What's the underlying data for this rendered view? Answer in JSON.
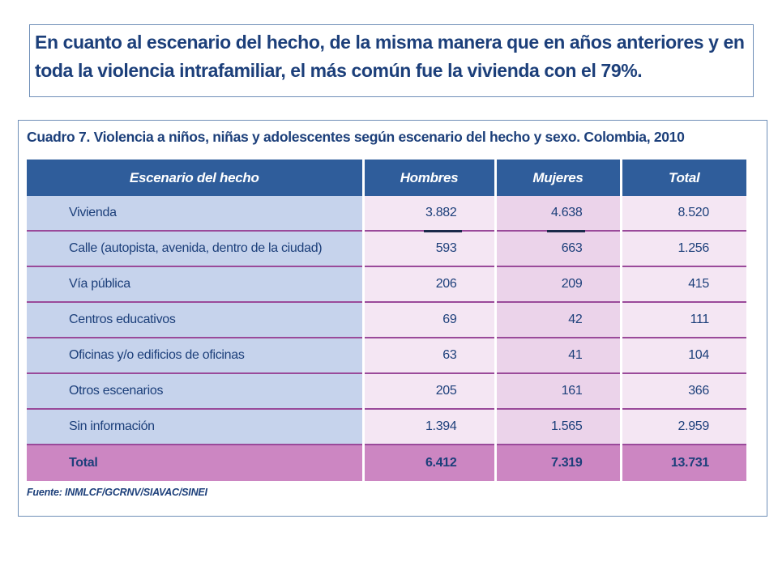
{
  "headline": "En cuanto al escenario del hecho, de la misma manera que en años anteriores y en toda la violencia intrafamiliar, el más común fue la vivienda con el 79%.",
  "table": {
    "title": "Cuadro 7. Violencia a niños, niñas y adolescentes según escenario del hecho y sexo. Colombia, 2010",
    "headers": [
      "Escenario del hecho",
      "Hombres",
      "Mujeres",
      "Total"
    ],
    "rows": [
      {
        "label": "Vivienda",
        "hombres": "3.882",
        "mujeres": "4.638",
        "total": "8.520"
      },
      {
        "label": "Calle (autopista, avenida, dentro de la ciudad)",
        "hombres": "593",
        "mujeres": "663",
        "total": "1.256"
      },
      {
        "label": "Vía pública",
        "hombres": "206",
        "mujeres": "209",
        "total": "415"
      },
      {
        "label": "Centros educativos",
        "hombres": "69",
        "mujeres": "42",
        "total": "111"
      },
      {
        "label": "Oficinas y/o edificios de oficinas",
        "hombres": "63",
        "mujeres": "41",
        "total": "104"
      },
      {
        "label": "Otros escenarios",
        "hombres": "205",
        "mujeres": "161",
        "total": "366"
      },
      {
        "label": "Sin información",
        "hombres": "1.394",
        "mujeres": "1.565",
        "total": "2.959"
      }
    ],
    "total_row": {
      "label": "Total",
      "hombres": "6.412",
      "mujeres": "7.319",
      "total": "13.731"
    },
    "source": "Fuente: INMLCF/GCRNV/SIAVAC/SINEI"
  },
  "colors": {
    "header_bg": "#2f5d9b",
    "label_col_bg": "#c6d3ec",
    "hombres_col_bg": "#f4e6f3",
    "mujeres_col_bg": "#ebd3ea",
    "total_row_bg": "#cc86c2",
    "text": "#1c3f7a"
  }
}
